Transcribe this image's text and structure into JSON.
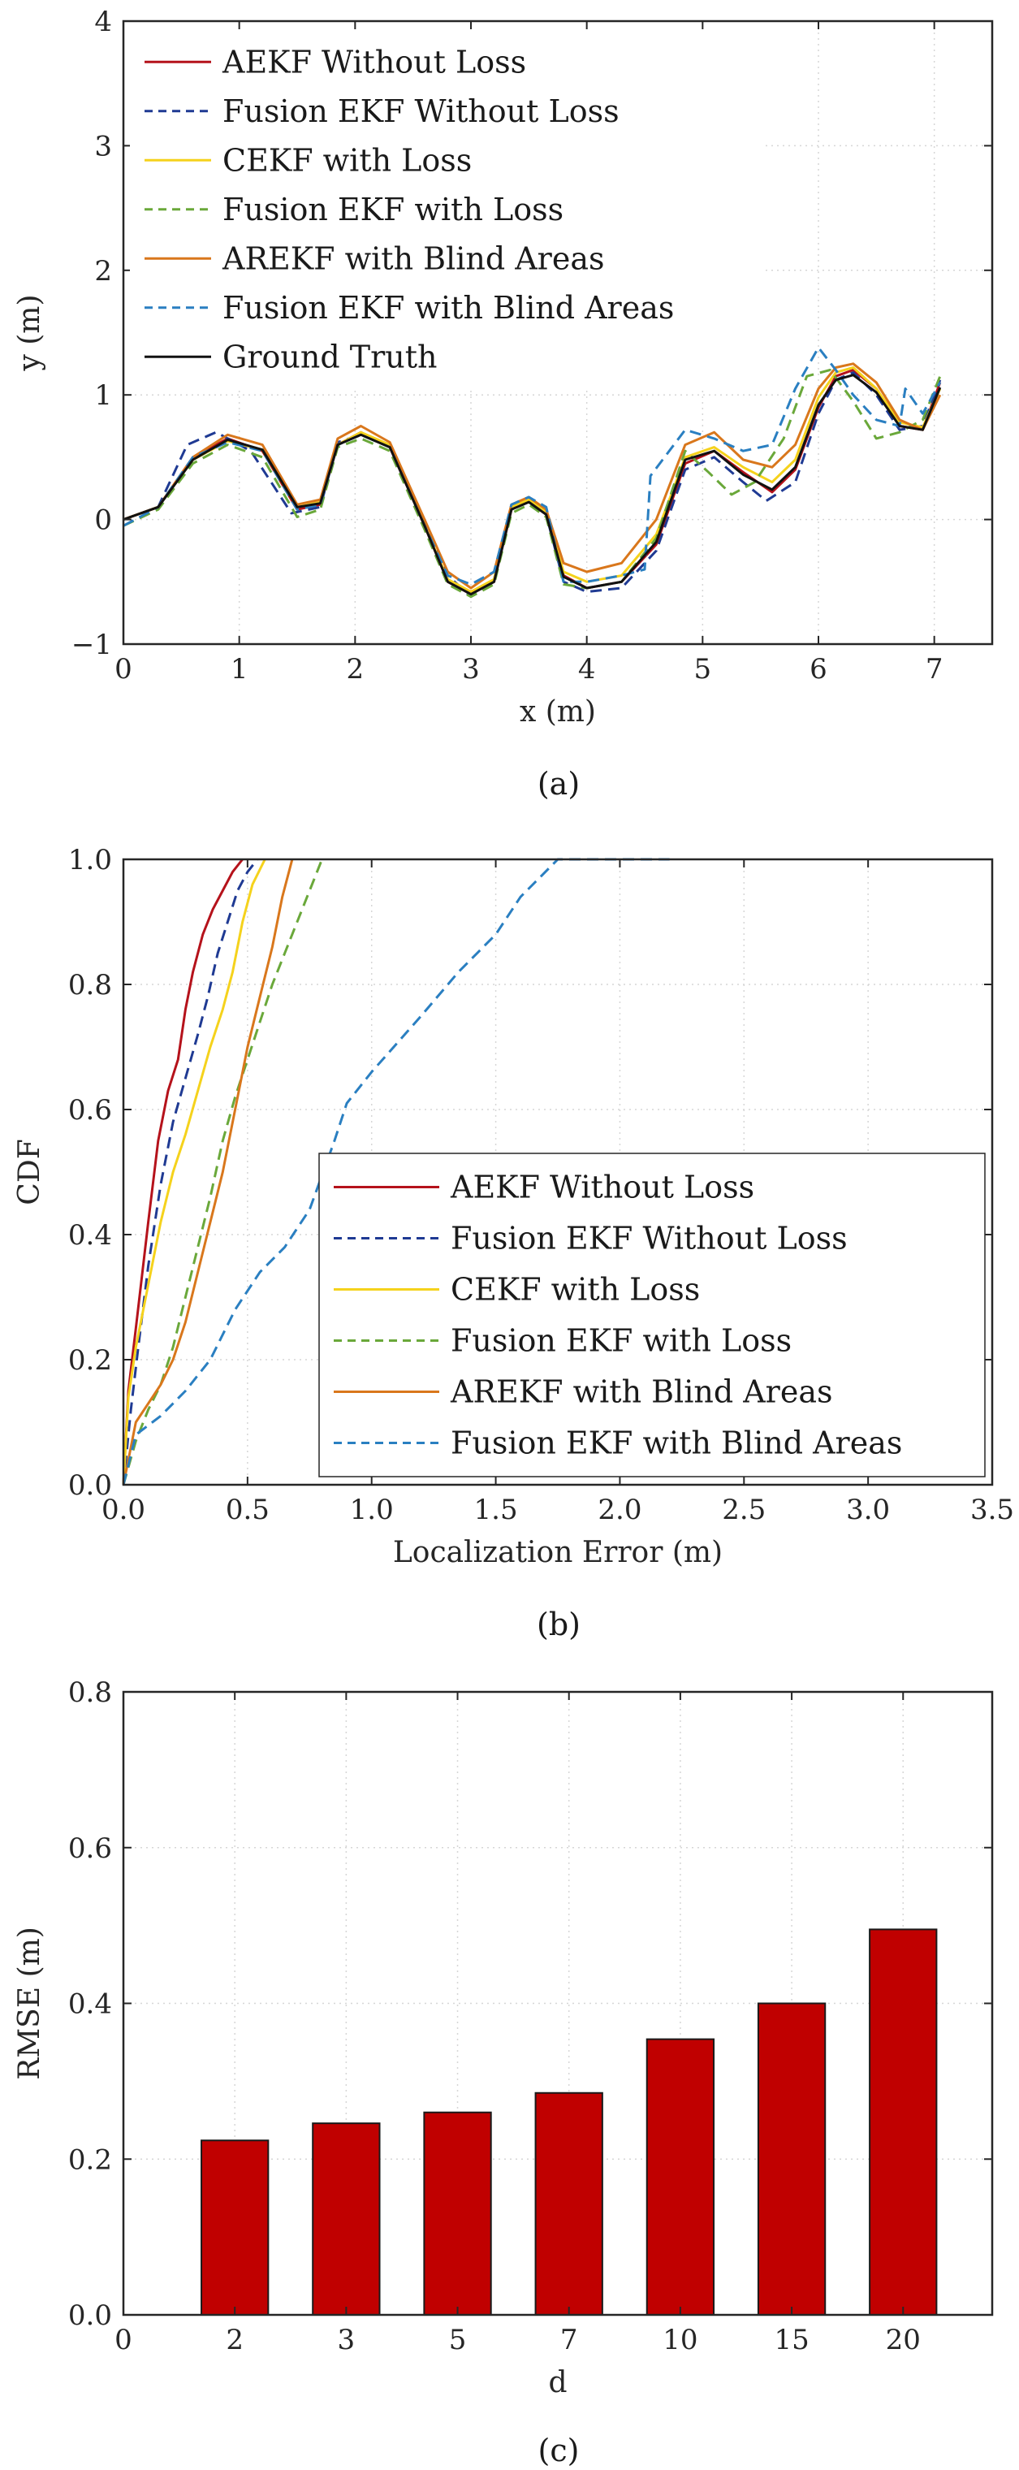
{
  "chart_data": [
    {
      "type": "line",
      "xlabel": "x (m)",
      "ylabel": "y (m)",
      "xlim": [
        0,
        7.5
      ],
      "ylim": [
        -1,
        4
      ],
      "xticks": [
        "0",
        "1",
        "2",
        "3",
        "4",
        "5",
        "6",
        "7"
      ],
      "yticks": [
        "−1",
        "0",
        "1",
        "2",
        "3",
        "4"
      ],
      "grid": true,
      "legend_position": "top-left",
      "caption": "(a)",
      "series": [
        {
          "name": "AEKF Without Loss",
          "color": "#b5121b",
          "dash": "solid",
          "x": [
            0,
            0.3,
            0.6,
            0.9,
            1.2,
            1.5,
            1.7,
            1.85,
            2.05,
            2.3,
            2.6,
            2.8,
            3.0,
            3.2,
            3.35,
            3.5,
            3.65,
            3.8,
            4.0,
            4.3,
            4.6,
            4.85,
            5.1,
            5.35,
            5.6,
            5.8,
            6.0,
            6.15,
            6.3,
            6.5,
            6.7,
            6.9,
            7.05
          ],
          "y": [
            0,
            0.1,
            0.5,
            0.65,
            0.55,
            0.08,
            0.12,
            0.6,
            0.7,
            0.58,
            -0.05,
            -0.5,
            -0.6,
            -0.5,
            0.08,
            0.15,
            0.05,
            -0.45,
            -0.55,
            -0.5,
            -0.2,
            0.45,
            0.55,
            0.38,
            0.22,
            0.4,
            0.9,
            1.15,
            1.2,
            1.05,
            0.75,
            0.72,
            1.1
          ]
        },
        {
          "name": "Fusion EKF Without Loss",
          "color": "#1f3a93",
          "dash": "dashed",
          "x": [
            0,
            0.3,
            0.55,
            0.8,
            1.1,
            1.45,
            1.7,
            1.85,
            2.05,
            2.3,
            2.6,
            2.8,
            3.0,
            3.2,
            3.35,
            3.5,
            3.65,
            3.8,
            4.0,
            4.3,
            4.6,
            4.85,
            5.1,
            5.35,
            5.55,
            5.8,
            6.0,
            6.15,
            6.3,
            6.5,
            6.7,
            6.9,
            7.05
          ],
          "y": [
            0,
            0.1,
            0.6,
            0.7,
            0.55,
            0.05,
            0.1,
            0.62,
            0.68,
            0.6,
            -0.02,
            -0.45,
            -0.62,
            -0.48,
            0.1,
            0.17,
            0.04,
            -0.5,
            -0.58,
            -0.55,
            -0.25,
            0.4,
            0.5,
            0.3,
            0.15,
            0.3,
            0.85,
            1.12,
            1.18,
            1.0,
            0.72,
            0.75,
            1.12
          ]
        },
        {
          "name": "CEKF with Loss",
          "color": "#f5d21c",
          "dash": "solid",
          "x": [
            0,
            0.3,
            0.6,
            0.9,
            1.2,
            1.5,
            1.7,
            1.85,
            2.05,
            2.3,
            2.6,
            2.8,
            3.0,
            3.2,
            3.35,
            3.5,
            3.65,
            3.8,
            4.0,
            4.3,
            4.6,
            4.85,
            5.1,
            5.35,
            5.6,
            5.8,
            6.0,
            6.15,
            6.3,
            6.5,
            6.7,
            6.9,
            7.05
          ],
          "y": [
            0,
            0.1,
            0.48,
            0.63,
            0.56,
            0.1,
            0.14,
            0.6,
            0.7,
            0.6,
            -0.05,
            -0.48,
            -0.58,
            -0.48,
            0.1,
            0.16,
            0.06,
            -0.42,
            -0.5,
            -0.45,
            -0.12,
            0.5,
            0.58,
            0.42,
            0.3,
            0.48,
            0.98,
            1.18,
            1.22,
            1.05,
            0.78,
            0.74,
            1.05
          ]
        },
        {
          "name": "Fusion EKF with Loss",
          "color": "#6aa83a",
          "dash": "dashed",
          "x": [
            0,
            0.3,
            0.6,
            0.9,
            1.2,
            1.5,
            1.7,
            1.85,
            2.05,
            2.3,
            2.6,
            2.8,
            3.0,
            3.2,
            3.35,
            3.5,
            3.65,
            3.8,
            4.0,
            4.3,
            4.6,
            4.85,
            5.05,
            5.25,
            5.45,
            5.7,
            5.9,
            6.1,
            6.3,
            6.5,
            6.7,
            6.9,
            7.05
          ],
          "y": [
            -0.05,
            0.08,
            0.45,
            0.6,
            0.5,
            0.02,
            0.08,
            0.58,
            0.65,
            0.55,
            -0.08,
            -0.52,
            -0.62,
            -0.52,
            0.05,
            0.12,
            0.02,
            -0.52,
            -0.55,
            -0.5,
            -0.15,
            0.55,
            0.38,
            0.2,
            0.3,
            0.65,
            1.15,
            1.2,
            0.95,
            0.65,
            0.7,
            0.8,
            1.15
          ]
        },
        {
          "name": "AREKF with Blind Areas",
          "color": "#d9771c",
          "dash": "solid",
          "x": [
            0,
            0.3,
            0.6,
            0.9,
            1.2,
            1.5,
            1.7,
            1.85,
            2.05,
            2.3,
            2.6,
            2.8,
            3.0,
            3.2,
            3.35,
            3.5,
            3.65,
            3.8,
            4.0,
            4.3,
            4.6,
            4.85,
            5.1,
            5.35,
            5.6,
            5.8,
            6.0,
            6.15,
            6.3,
            6.5,
            6.7,
            6.9,
            7.05
          ],
          "y": [
            0,
            0.1,
            0.5,
            0.68,
            0.6,
            0.12,
            0.16,
            0.65,
            0.75,
            0.62,
            0.0,
            -0.42,
            -0.55,
            -0.42,
            0.12,
            0.18,
            0.08,
            -0.35,
            -0.42,
            -0.35,
            0.0,
            0.6,
            0.7,
            0.48,
            0.42,
            0.6,
            1.05,
            1.22,
            1.25,
            1.1,
            0.8,
            0.72,
            1.0
          ]
        },
        {
          "name": "Fusion EKF with Blind Areas",
          "color": "#2a7fc1",
          "dash": "dashed",
          "x": [
            0,
            0.3,
            0.6,
            0.9,
            1.2,
            1.5,
            1.7,
            1.85,
            2.05,
            2.3,
            2.6,
            2.8,
            3.0,
            3.2,
            3.35,
            3.5,
            3.65,
            3.8,
            4.0,
            4.3,
            4.5,
            4.55,
            4.85,
            5.1,
            5.35,
            5.6,
            5.8,
            6.0,
            6.15,
            6.3,
            6.5,
            6.7,
            6.75,
            6.9,
            7.05
          ],
          "y": [
            -0.05,
            0.1,
            0.5,
            0.62,
            0.55,
            0.08,
            0.12,
            0.6,
            0.68,
            0.58,
            -0.05,
            -0.45,
            -0.52,
            -0.42,
            0.12,
            0.18,
            0.1,
            -0.5,
            -0.5,
            -0.45,
            -0.4,
            0.35,
            0.72,
            0.65,
            0.55,
            0.6,
            1.05,
            1.38,
            1.2,
            1.0,
            0.8,
            0.75,
            1.05,
            0.85,
            1.1
          ]
        },
        {
          "name": "Ground Truth",
          "color": "#111111",
          "dash": "solid",
          "x": [
            0,
            0.3,
            0.6,
            0.9,
            1.2,
            1.5,
            1.7,
            1.85,
            2.05,
            2.3,
            2.6,
            2.8,
            3.0,
            3.2,
            3.35,
            3.5,
            3.65,
            3.8,
            4.0,
            4.3,
            4.6,
            4.85,
            5.1,
            5.35,
            5.6,
            5.8,
            6.0,
            6.15,
            6.3,
            6.5,
            6.7,
            6.9,
            7.05
          ],
          "y": [
            0,
            0.1,
            0.48,
            0.64,
            0.56,
            0.1,
            0.13,
            0.6,
            0.68,
            0.58,
            -0.05,
            -0.5,
            -0.6,
            -0.5,
            0.08,
            0.14,
            0.04,
            -0.46,
            -0.55,
            -0.5,
            -0.18,
            0.48,
            0.55,
            0.36,
            0.24,
            0.42,
            0.92,
            1.12,
            1.16,
            1.02,
            0.75,
            0.72,
            1.06
          ]
        }
      ]
    },
    {
      "type": "line",
      "xlabel": "Localization Error (m)",
      "ylabel": "CDF",
      "xlim": [
        0,
        3.5
      ],
      "ylim": [
        0,
        1
      ],
      "xticks": [
        "0.0",
        "0.5",
        "1.0",
        "1.5",
        "2.0",
        "2.5",
        "3.0",
        "3.5"
      ],
      "yticks": [
        "0.0",
        "0.2",
        "0.4",
        "0.6",
        "0.8",
        "1.0"
      ],
      "grid": true,
      "legend_position": "bottom-right",
      "caption": "(b)",
      "series": [
        {
          "name": "AEKF Without Loss",
          "color": "#b5121b",
          "dash": "solid",
          "x": [
            0,
            0.02,
            0.05,
            0.1,
            0.14,
            0.18,
            0.22,
            0.25,
            0.28,
            0.32,
            0.36,
            0.4,
            0.44,
            0.48
          ],
          "y": [
            0,
            0.15,
            0.25,
            0.42,
            0.55,
            0.63,
            0.68,
            0.76,
            0.82,
            0.88,
            0.92,
            0.95,
            0.98,
            1.0
          ]
        },
        {
          "name": "Fusion EKF Without Loss",
          "color": "#1f3a93",
          "dash": "dashed",
          "x": [
            0,
            0.03,
            0.06,
            0.1,
            0.15,
            0.2,
            0.25,
            0.3,
            0.34,
            0.38,
            0.42,
            0.46,
            0.5,
            0.54
          ],
          "y": [
            0,
            0.12,
            0.22,
            0.35,
            0.48,
            0.58,
            0.65,
            0.72,
            0.78,
            0.85,
            0.9,
            0.95,
            0.98,
            1.0
          ]
        },
        {
          "name": "CEKF with Loss",
          "color": "#f5d21c",
          "dash": "solid",
          "x": [
            0,
            0.02,
            0.05,
            0.1,
            0.15,
            0.2,
            0.25,
            0.3,
            0.35,
            0.4,
            0.44,
            0.48,
            0.52,
            0.57
          ],
          "y": [
            0,
            0.14,
            0.22,
            0.32,
            0.42,
            0.5,
            0.56,
            0.63,
            0.7,
            0.76,
            0.82,
            0.9,
            0.96,
            1.0
          ]
        },
        {
          "name": "Fusion EKF with Loss",
          "color": "#6aa83a",
          "dash": "dashed",
          "x": [
            0,
            0.05,
            0.1,
            0.15,
            0.2,
            0.25,
            0.3,
            0.35,
            0.4,
            0.45,
            0.5,
            0.55,
            0.6,
            0.65,
            0.7,
            0.75,
            0.8
          ],
          "y": [
            0,
            0.07,
            0.12,
            0.16,
            0.22,
            0.3,
            0.38,
            0.46,
            0.55,
            0.62,
            0.68,
            0.74,
            0.8,
            0.85,
            0.9,
            0.95,
            1.0
          ]
        },
        {
          "name": "AREKF with Blind Areas",
          "color": "#d9771c",
          "dash": "solid",
          "x": [
            0,
            0.05,
            0.1,
            0.15,
            0.2,
            0.25,
            0.3,
            0.35,
            0.4,
            0.45,
            0.5,
            0.55,
            0.6,
            0.64,
            0.68
          ],
          "y": [
            0,
            0.1,
            0.13,
            0.16,
            0.2,
            0.26,
            0.34,
            0.42,
            0.5,
            0.6,
            0.7,
            0.78,
            0.86,
            0.94,
            1.0
          ]
        },
        {
          "name": "Fusion EKF with Blind Areas",
          "color": "#2a7fc1",
          "dash": "dashed",
          "x": [
            0,
            0.05,
            0.15,
            0.25,
            0.35,
            0.45,
            0.55,
            0.65,
            0.75,
            0.85,
            0.9,
            1.0,
            1.2,
            1.35,
            1.5,
            1.6,
            1.75,
            1.85,
            2.0,
            2.2
          ],
          "y": [
            0,
            0.08,
            0.11,
            0.15,
            0.2,
            0.28,
            0.34,
            0.38,
            0.44,
            0.55,
            0.61,
            0.66,
            0.75,
            0.82,
            0.88,
            0.94,
            1.0,
            1.0,
            1.0,
            1.0
          ]
        }
      ]
    },
    {
      "type": "bar",
      "xlabel": "d",
      "ylabel": "RMSE (m)",
      "ylim": [
        0,
        0.8
      ],
      "xticks": [
        "0",
        "2",
        "3",
        "5",
        "7",
        "10",
        "15",
        "20"
      ],
      "yticks": [
        "0.0",
        "0.2",
        "0.4",
        "0.6",
        "0.8"
      ],
      "categories": [
        "2",
        "3",
        "5",
        "7",
        "10",
        "15",
        "20"
      ],
      "values": [
        0.224,
        0.246,
        0.26,
        0.285,
        0.354,
        0.4,
        0.495
      ],
      "bar_color": "#c00000",
      "grid": true,
      "caption": "(c)"
    }
  ]
}
